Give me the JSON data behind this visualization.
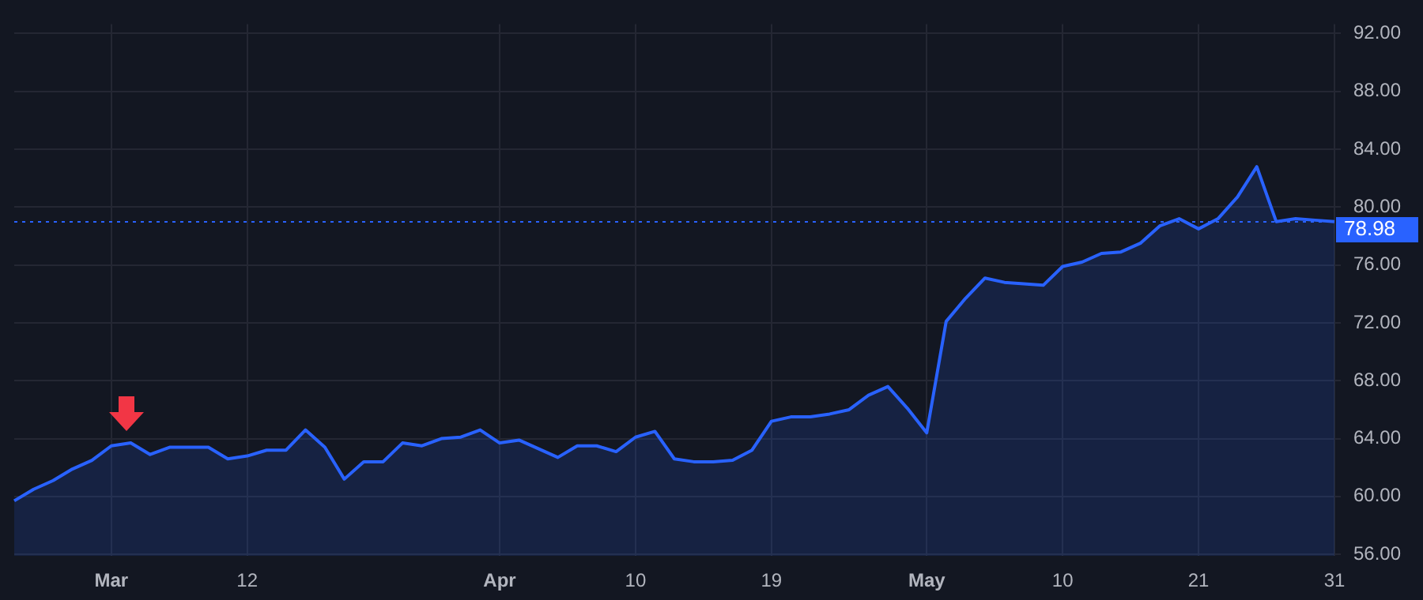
{
  "chart_data": {
    "type": "area",
    "categories": [
      null,
      null,
      null,
      null,
      null,
      "Mar",
      null,
      null,
      null,
      null,
      null,
      null,
      "12",
      null,
      null,
      null,
      null,
      null,
      null,
      null,
      null,
      null,
      null,
      null,
      null,
      "Apr",
      null,
      null,
      null,
      null,
      null,
      null,
      "10",
      null,
      null,
      null,
      null,
      null,
      null,
      "19",
      null,
      null,
      null,
      null,
      null,
      null,
      null,
      "May",
      null,
      null,
      null,
      null,
      null,
      null,
      "10",
      null,
      null,
      null,
      null,
      null,
      null,
      "21",
      null,
      null,
      null,
      null,
      null,
      null,
      "31"
    ],
    "series": [
      {
        "color": "#2962ff",
        "values": [
          59.7,
          60.5,
          61.1,
          61.9,
          62.5,
          63.5,
          63.7,
          62.9,
          63.4,
          63.4,
          63.4,
          62.6,
          62.8,
          63.2,
          63.2,
          64.6,
          63.4,
          61.2,
          62.4,
          62.4,
          63.7,
          63.5,
          64.0,
          64.1,
          64.6,
          63.7,
          63.9,
          63.3,
          62.7,
          63.5,
          63.5,
          63.1,
          64.1,
          64.5,
          62.6,
          62.4,
          62.4,
          62.5,
          63.2,
          65.2,
          65.5,
          65.5,
          65.7,
          66.0,
          67.0,
          67.6,
          66.1,
          64.4,
          72.1,
          73.7,
          75.1,
          74.8,
          74.7,
          74.6,
          75.9,
          76.2,
          76.8,
          76.9,
          77.5,
          78.7,
          79.2,
          78.5,
          79.2,
          80.7,
          82.8,
          79.0,
          79.2,
          79.1,
          79.0
        ]
      }
    ],
    "ylim": [
      55.9,
      92.66
    ],
    "yticks": [
      {
        "value": 56,
        "label": "56.00"
      },
      {
        "value": 60,
        "label": "60.00"
      },
      {
        "value": 64,
        "label": "64.00"
      },
      {
        "value": 68,
        "label": "68.00"
      },
      {
        "value": 72,
        "label": "72.00"
      },
      {
        "value": 76,
        "label": "76.00"
      },
      {
        "value": 80,
        "label": "80.00"
      },
      {
        "value": 84,
        "label": "84.00"
      },
      {
        "value": 88,
        "label": "88.00"
      },
      {
        "value": 92,
        "label": "92.00"
      }
    ],
    "ref_lines": [
      {
        "axis": "y",
        "value": 78.98,
        "label": "78.98",
        "color": "#2962ff",
        "line_style": "dotted"
      }
    ],
    "grid": true,
    "legend": false,
    "marker": "none"
  }
}
